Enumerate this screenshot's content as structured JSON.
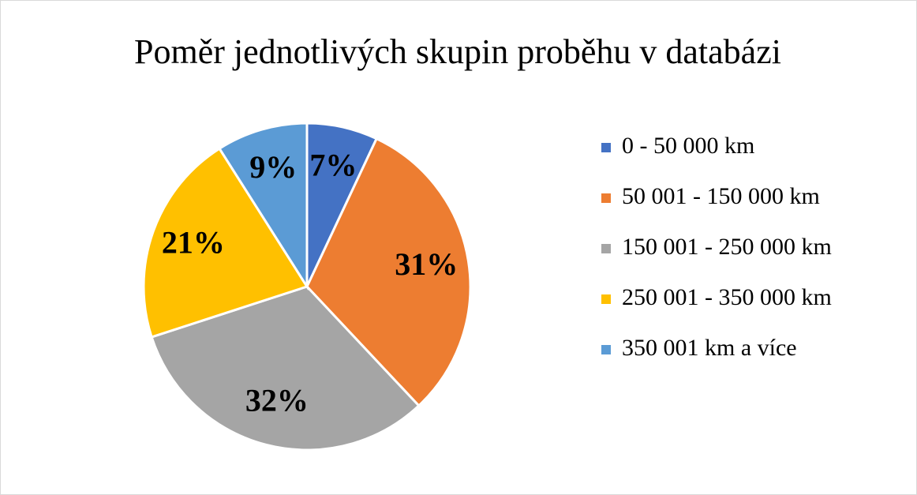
{
  "chart_data": {
    "type": "pie",
    "title": "Poměr jednotlivých skupin proběhu v databázi",
    "categories": [
      "0 - 50 000 km",
      "50 001 - 150 000 km",
      "150 001 - 250 000 km",
      "250 001 - 350 000 km",
      "350 001 km a více"
    ],
    "values": [
      7,
      31,
      32,
      21,
      9
    ],
    "value_labels": [
      "7%",
      "31%",
      "32%",
      "21%",
      "9%"
    ],
    "colors": [
      "#4472c4",
      "#ed7d31",
      "#a5a5a5",
      "#ffc000",
      "#5b9bd5"
    ],
    "legend": "right"
  }
}
